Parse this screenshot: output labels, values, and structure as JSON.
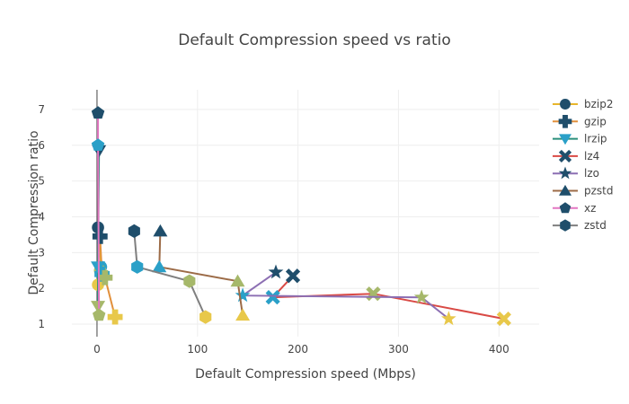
{
  "chart_data": {
    "type": "line",
    "title": "Default Compression speed vs ratio",
    "xlabel": "Default Compression speed (Mbps)",
    "ylabel": "Default Compression ratio",
    "xlim": [
      -25,
      440
    ],
    "ylim": [
      0.65,
      7.55
    ],
    "xticks": [
      0,
      100,
      200,
      300,
      400
    ],
    "yticks": [
      1,
      2,
      3,
      4,
      5,
      6,
      7
    ],
    "grid": true,
    "legend_position": "right",
    "series": [
      {
        "name": "bzip2",
        "color": "#1f4e6b",
        "symbol": "circle",
        "points": [
          [
            1,
            3.7
          ],
          [
            4,
            2.6
          ],
          [
            3,
            2.5
          ],
          [
            1,
            2.1
          ]
        ]
      },
      {
        "name": "gzip",
        "color": "#1f4e6b",
        "symbol": "cross",
        "points": [
          [
            3,
            3.45
          ],
          [
            5,
            2.4
          ],
          [
            8,
            2.3
          ],
          [
            18,
            1.2
          ]
        ]
      },
      {
        "name": "lrzip",
        "color": "#2aa0c8",
        "symbol": "triangle-down",
        "points": [
          [
            2,
            5.85
          ],
          [
            1,
            2.6
          ],
          [
            1,
            1.5
          ]
        ]
      },
      {
        "name": "lz4",
        "color": "#1f4e6b",
        "symbol": "x",
        "points": [
          [
            195,
            2.35
          ],
          [
            175,
            1.75
          ],
          [
            275,
            1.85
          ],
          [
            405,
            1.15
          ]
        ]
      },
      {
        "name": "lzo",
        "color": "#1f4e6b",
        "symbol": "star",
        "points": [
          [
            178,
            2.45
          ],
          [
            145,
            1.8
          ],
          [
            323,
            1.75
          ],
          [
            350,
            1.15
          ]
        ]
      },
      {
        "name": "pzstd",
        "color": "#1f4e6b",
        "symbol": "triangle-up",
        "points": [
          [
            63,
            3.6
          ],
          [
            62,
            2.6
          ],
          [
            140,
            2.2
          ],
          [
            145,
            1.25
          ]
        ]
      },
      {
        "name": "xz",
        "color": "#1f4e6b",
        "symbol": "pentagon",
        "points": [
          [
            1,
            6.9
          ],
          [
            1,
            6.0
          ],
          [
            2,
            1.25
          ]
        ]
      },
      {
        "name": "zstd",
        "color": "#1f4e6b",
        "symbol": "hexagon",
        "points": [
          [
            37,
            3.6
          ],
          [
            40,
            2.6
          ],
          [
            92,
            2.2
          ],
          [
            108,
            1.2
          ]
        ]
      }
    ],
    "line_colors": [
      "#e8b62c",
      "#e2903c",
      "#2a8f7a",
      "#d94a45",
      "#8c6fb3",
      "#9c6b47",
      "#e377c2",
      "#7f7f7f"
    ],
    "marker_cycle": [
      "#1f4e6b",
      "#2aa0c8",
      "#a6b86a",
      "#e8c84a"
    ]
  }
}
